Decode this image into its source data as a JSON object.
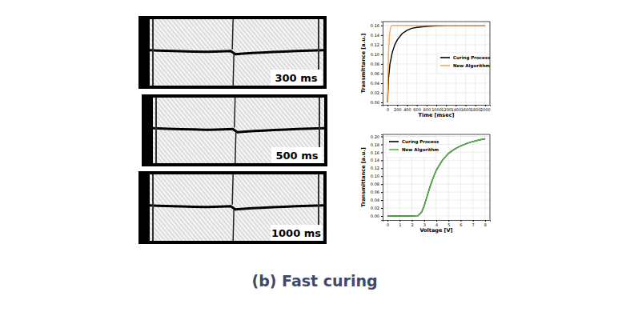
{
  "chart_data": [
    {
      "type": "line",
      "xlabel": "Time [msec]",
      "ylabel": "Transmittance [a.u.]",
      "xlim": [
        -100,
        2100
      ],
      "ylim": [
        -0.005,
        0.168
      ],
      "xticks": [
        0,
        200,
        400,
        600,
        800,
        1000,
        1200,
        1400,
        1600,
        1800,
        2000
      ],
      "yticks": [
        {
          "value": 0,
          "label": "0.00"
        },
        {
          "value": 0.02,
          "label": "0.02"
        },
        {
          "value": 0.04,
          "label": "0.04"
        },
        {
          "value": 0.06,
          "label": "0.06"
        },
        {
          "value": 0.08,
          "label": "0.08"
        },
        {
          "value": 0.1,
          "label": "0.10"
        },
        {
          "value": 0.12,
          "label": "0.12"
        },
        {
          "value": 0.14,
          "label": "0.14"
        },
        {
          "value": 0.16,
          "label": "0.16"
        }
      ],
      "grid": true,
      "legend": "center right",
      "series": [
        {
          "name": "Curing Process",
          "color": "#000000",
          "x": [
            0,
            20,
            50,
            100,
            150,
            200,
            300,
            400,
            500,
            600,
            800,
            1000,
            1200,
            1500,
            2000
          ],
          "values": [
            0.0,
            0.05,
            0.08,
            0.105,
            0.12,
            0.13,
            0.143,
            0.15,
            0.154,
            0.156,
            0.158,
            0.159,
            0.16,
            0.16,
            0.16
          ]
        },
        {
          "name": "New Algorithm",
          "color": "#f5a95f",
          "x": [
            0,
            10,
            20,
            40,
            60,
            80,
            100,
            150,
            200,
            500,
            1000,
            1500,
            2000
          ],
          "values": [
            0.0,
            0.06,
            0.1,
            0.14,
            0.155,
            0.159,
            0.16,
            0.16,
            0.16,
            0.16,
            0.16,
            0.16,
            0.16
          ]
        }
      ]
    },
    {
      "type": "line",
      "xlabel": "Voltage [V]",
      "ylabel": "Transmittance [a.u.]",
      "xlim": [
        -0.4,
        8.4
      ],
      "ylim": [
        -0.01,
        0.205
      ],
      "xticks": [
        0,
        1,
        2,
        3,
        4,
        5,
        6,
        7,
        8
      ],
      "yticks": [
        {
          "value": 0,
          "label": "0.00"
        },
        {
          "value": 0.02,
          "label": "0.02"
        },
        {
          "value": 0.04,
          "label": "0.04"
        },
        {
          "value": 0.06,
          "label": "0.06"
        },
        {
          "value": 0.08,
          "label": "0.08"
        },
        {
          "value": 0.1,
          "label": "0.10"
        },
        {
          "value": 0.12,
          "label": "0.12"
        },
        {
          "value": 0.14,
          "label": "0.14"
        },
        {
          "value": 0.16,
          "label": "0.16"
        },
        {
          "value": 0.18,
          "label": "0.18"
        },
        {
          "value": 0.2,
          "label": "0.20"
        }
      ],
      "grid": true,
      "legend": "upper left",
      "series": [
        {
          "name": "Curing Process",
          "color": "#000000",
          "x": [
            0,
            1,
            2,
            2.5,
            2.8,
            3,
            3.2,
            3.5,
            3.8,
            4,
            4.5,
            5,
            5.5,
            6,
            6.5,
            7,
            7.5,
            8
          ],
          "values": [
            0,
            0,
            0,
            0.001,
            0.01,
            0.025,
            0.045,
            0.075,
            0.1,
            0.115,
            0.14,
            0.157,
            0.168,
            0.176,
            0.182,
            0.187,
            0.191,
            0.194
          ]
        },
        {
          "name": "New Algorithm",
          "color": "#55b548",
          "x": [
            0,
            1,
            2,
            2.5,
            2.8,
            3,
            3.2,
            3.5,
            3.8,
            4,
            4.5,
            5,
            5.5,
            6,
            6.5,
            7,
            7.5,
            8
          ],
          "values": [
            0,
            0,
            0,
            0.001,
            0.01,
            0.025,
            0.045,
            0.075,
            0.1,
            0.115,
            0.14,
            0.157,
            0.168,
            0.176,
            0.182,
            0.187,
            0.191,
            0.194
          ]
        }
      ]
    }
  ],
  "panels": [
    {
      "label": "300 ms"
    },
    {
      "label": "500 ms"
    },
    {
      "label": "1000 ms"
    }
  ],
  "caption": "(b) Fast curing"
}
